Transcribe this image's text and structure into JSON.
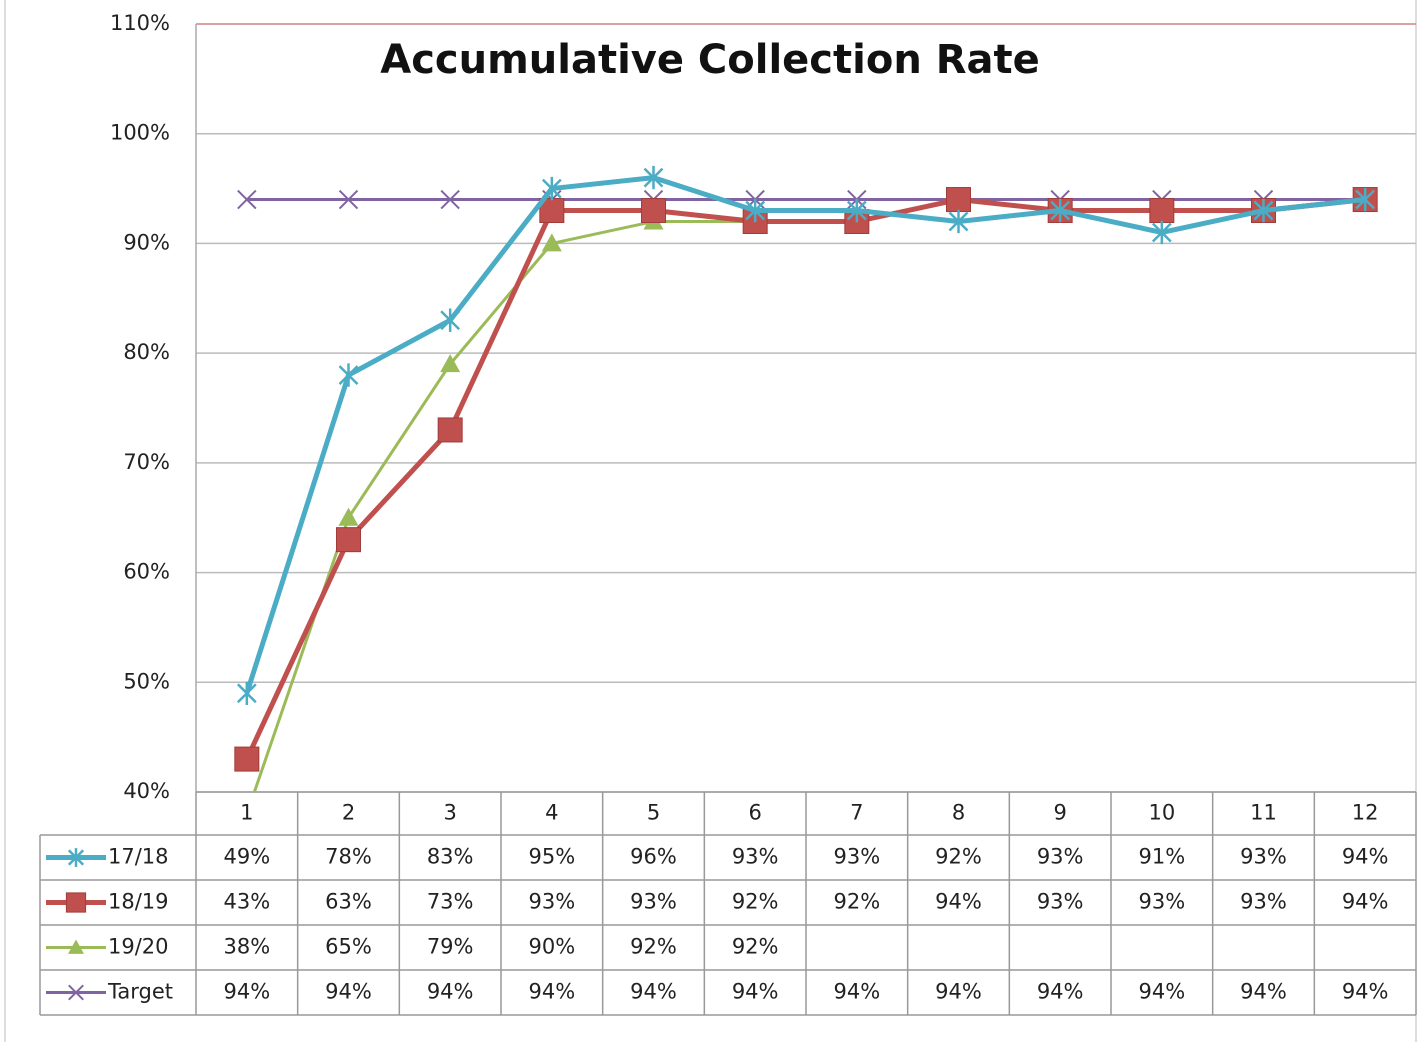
{
  "chart_data": {
    "type": "line",
    "title": "Accumulative Collection Rate",
    "categories": [
      "1",
      "2",
      "3",
      "4",
      "5",
      "6",
      "7",
      "8",
      "9",
      "10",
      "11",
      "12"
    ],
    "ylim": [
      40,
      110
    ],
    "yticks": [
      {
        "value": 40,
        "label": "40%"
      },
      {
        "value": 50,
        "label": "50%"
      },
      {
        "value": 60,
        "label": "60%"
      },
      {
        "value": 70,
        "label": "70%"
      },
      {
        "value": 80,
        "label": "80%"
      },
      {
        "value": 90,
        "label": "90%"
      },
      {
        "value": 100,
        "label": "100%"
      },
      {
        "value": 110,
        "label": "110%"
      }
    ],
    "grid": true,
    "series": [
      {
        "name": "17/18",
        "color": "#4bacc6",
        "marker": "star",
        "values": [
          49,
          78,
          83,
          95,
          96,
          93,
          93,
          92,
          93,
          91,
          93,
          94
        ],
        "value_labels": [
          "49%",
          "78%",
          "83%",
          "95%",
          "96%",
          "93%",
          "93%",
          "92%",
          "93%",
          "91%",
          "93%",
          "94%"
        ]
      },
      {
        "name": "18/19",
        "color": "#c0504d",
        "marker": "square",
        "values": [
          43,
          63,
          73,
          93,
          93,
          92,
          92,
          94,
          93,
          93,
          93,
          94
        ],
        "value_labels": [
          "43%",
          "63%",
          "73%",
          "93%",
          "93%",
          "92%",
          "92%",
          "94%",
          "93%",
          "93%",
          "93%",
          "94%"
        ]
      },
      {
        "name": "19/20",
        "color": "#9bbb59",
        "marker": "triangle",
        "values": [
          38,
          65,
          79,
          90,
          92,
          92,
          null,
          null,
          null,
          null,
          null,
          null
        ],
        "value_labels": [
          "38%",
          "65%",
          "79%",
          "90%",
          "92%",
          "92%",
          null,
          null,
          null,
          null,
          null,
          null
        ]
      },
      {
        "name": "Target",
        "color": "#8064a2",
        "marker": "x",
        "values": [
          94,
          94,
          94,
          94,
          94,
          94,
          94,
          94,
          94,
          94,
          94,
          94
        ],
        "value_labels": [
          "94%",
          "94%",
          "94%",
          "94%",
          "94%",
          "94%",
          "94%",
          "94%",
          "94%",
          "94%",
          "94%",
          "94%"
        ]
      }
    ]
  }
}
